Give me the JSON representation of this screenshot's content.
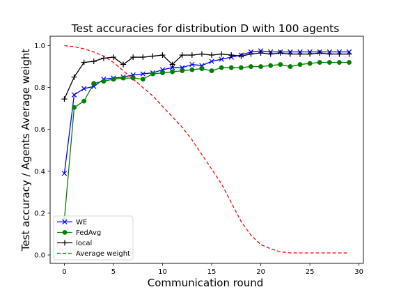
{
  "chart_data": {
    "type": "line",
    "title": "Test accuracies for distribution D with 100 agents",
    "xlabel": "Communication round",
    "ylabel": "Test accuracy / Agents Average weight",
    "xlim": [
      -1.45,
      30.45
    ],
    "ylim": [
      -0.04,
      1.045
    ],
    "xticks": [
      0,
      5,
      10,
      15,
      20,
      25,
      30
    ],
    "yticks": [
      0.0,
      0.2,
      0.4,
      0.6,
      0.8,
      1.0
    ],
    "xtick_labels": [
      "0",
      "5",
      "10",
      "15",
      "20",
      "25",
      "30"
    ],
    "ytick_labels": [
      "0.0",
      "0.2",
      "0.4",
      "0.6",
      "0.8",
      "1.0"
    ],
    "grid": false,
    "legend_position": "lower-left",
    "x": [
      0,
      1,
      2,
      3,
      4,
      5,
      6,
      7,
      8,
      9,
      10,
      11,
      12,
      13,
      14,
      15,
      16,
      17,
      18,
      19,
      20,
      21,
      22,
      23,
      24,
      25,
      26,
      27,
      28,
      29
    ],
    "series": [
      {
        "name": "WE",
        "color": "#0000ff",
        "marker": "x",
        "linestyle": "solid",
        "values": [
          0.39,
          0.765,
          0.795,
          0.805,
          0.84,
          0.845,
          0.85,
          0.86,
          0.865,
          0.87,
          0.885,
          0.895,
          0.895,
          0.91,
          0.905,
          0.925,
          0.935,
          0.945,
          0.955,
          0.97,
          0.975,
          0.97,
          0.97,
          0.97,
          0.97,
          0.97,
          0.97,
          0.97,
          0.97,
          0.97
        ]
      },
      {
        "name": "FedAvg",
        "color": "#008000",
        "marker": "o",
        "linestyle": "solid",
        "values": [
          0.17,
          0.705,
          0.735,
          0.82,
          0.83,
          0.84,
          0.845,
          0.845,
          0.84,
          0.865,
          0.87,
          0.875,
          0.88,
          0.885,
          0.89,
          0.88,
          0.895,
          0.895,
          0.895,
          0.9,
          0.9,
          0.905,
          0.91,
          0.9,
          0.91,
          0.915,
          0.92,
          0.92,
          0.92,
          0.92
        ]
      },
      {
        "name": "local",
        "color": "#000000",
        "marker": "+",
        "linestyle": "solid",
        "values": [
          0.745,
          0.85,
          0.92,
          0.925,
          0.94,
          0.945,
          0.91,
          0.945,
          0.945,
          0.95,
          0.955,
          0.91,
          0.955,
          0.955,
          0.96,
          0.955,
          0.96,
          0.955,
          0.95,
          0.96,
          0.965,
          0.96,
          0.965,
          0.96,
          0.96,
          0.96,
          0.965,
          0.96,
          0.96,
          0.96
        ]
      },
      {
        "name": "Average weight",
        "color": "#ff0000",
        "marker": "none",
        "linestyle": "dashed",
        "values": [
          1.0,
          0.995,
          0.985,
          0.97,
          0.95,
          0.92,
          0.88,
          0.84,
          0.8,
          0.76,
          0.71,
          0.66,
          0.61,
          0.55,
          0.48,
          0.41,
          0.34,
          0.25,
          0.16,
          0.095,
          0.05,
          0.03,
          0.015,
          0.01,
          0.01,
          0.01,
          0.01,
          0.01,
          0.01,
          0.01
        ]
      }
    ]
  }
}
